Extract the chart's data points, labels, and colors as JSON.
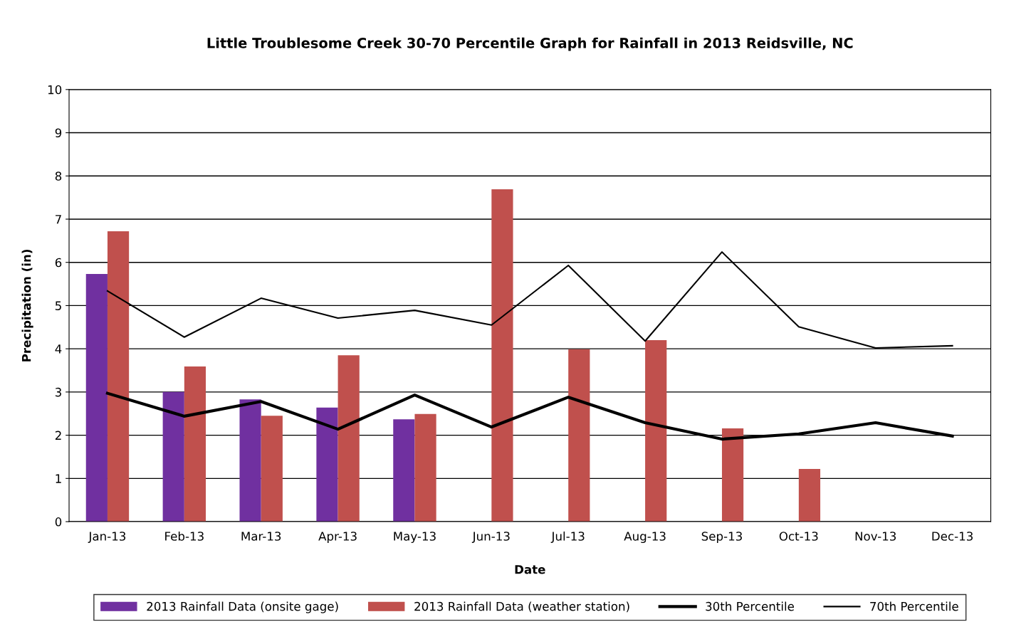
{
  "chart_data": {
    "type": "bar",
    "title": "Little Troublesome Creek 30-70 Percentile Graph for Rainfall in 2013 Reidsville, NC",
    "xlabel": "Date",
    "ylabel": "Precipitation (in)",
    "categories": [
      "Jan-13",
      "Feb-13",
      "Mar-13",
      "Apr-13",
      "May-13",
      "Jun-13",
      "Jul-13",
      "Aug-13",
      "Sep-13",
      "Oct-13",
      "Nov-13",
      "Dec-13"
    ],
    "series": [
      {
        "name": "2013 Rainfall Data (onsite gage)",
        "color": "#7030a0",
        "values": [
          5.73,
          3.0,
          2.83,
          2.64,
          2.37,
          null,
          null,
          null,
          null,
          null,
          null,
          null
        ]
      },
      {
        "name": "2013 Rainfall Data (weather station)",
        "color": "#c0504d",
        "values": [
          6.72,
          3.59,
          2.45,
          3.85,
          2.49,
          7.69,
          3.99,
          4.2,
          2.16,
          1.22,
          null,
          null
        ]
      },
      {
        "name": "30th Percentile",
        "type": "line",
        "color": "#000000",
        "values": [
          2.97,
          2.44,
          2.78,
          2.14,
          2.93,
          2.19,
          2.88,
          2.29,
          1.91,
          2.03,
          2.29,
          1.98
        ]
      },
      {
        "name": "70th Percentile",
        "type": "line",
        "color": "#000000",
        "values": [
          5.34,
          4.27,
          5.17,
          4.71,
          4.89,
          4.55,
          5.93,
          4.18,
          6.24,
          4.51,
          4.02,
          4.07
        ]
      }
    ],
    "ylim": [
      0,
      10
    ],
    "yticks": [
      0,
      1,
      2,
      3,
      4,
      5,
      6,
      7,
      8,
      9,
      10
    ],
    "grid": "y",
    "legend": "bottom",
    "marker": "none",
    "line_style": "solid"
  }
}
